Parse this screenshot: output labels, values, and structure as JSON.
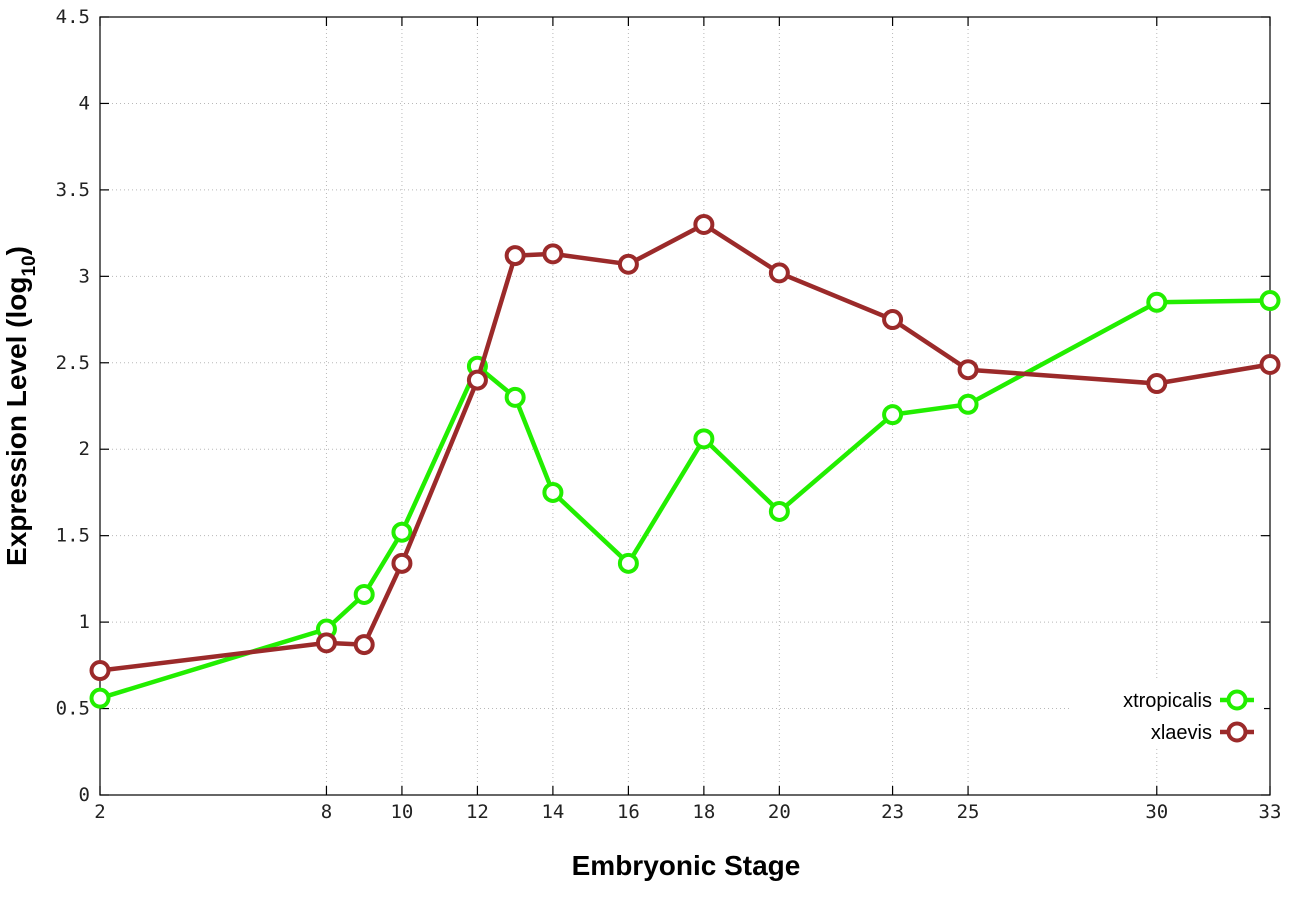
{
  "chart_data": {
    "type": "line",
    "title": "",
    "xlabel": "Embryonic Stage",
    "ylabel_main": "Expression Level (log",
    "ylabel_sub": "10",
    "ylabel_close": ")",
    "x_ticks": [
      "2",
      "8",
      "10",
      "12",
      "14",
      "16",
      "18",
      "20",
      "23",
      "25",
      "30",
      "33"
    ],
    "y_ticks": [
      "0",
      "0.5",
      "1",
      "1.5",
      "2",
      "2.5",
      "3",
      "3.5",
      "4",
      "4.5"
    ],
    "ylim": [
      0,
      4.5
    ],
    "grid": true,
    "legend_position": "bottom-right",
    "series": [
      {
        "name": "xtropicalis",
        "color": "#22ee00",
        "points": [
          {
            "x": 2,
            "y": 0.56
          },
          {
            "x": 8,
            "y": 0.96
          },
          {
            "x": 9,
            "y": 1.16
          },
          {
            "x": 10,
            "y": 1.52
          },
          {
            "x": 12,
            "y": 2.48
          },
          {
            "x": 13,
            "y": 2.3
          },
          {
            "x": 14,
            "y": 1.75
          },
          {
            "x": 16,
            "y": 1.34
          },
          {
            "x": 18,
            "y": 2.06
          },
          {
            "x": 20,
            "y": 1.64
          },
          {
            "x": 23,
            "y": 2.2
          },
          {
            "x": 25,
            "y": 2.26
          },
          {
            "x": 30,
            "y": 2.85
          },
          {
            "x": 33,
            "y": 2.86
          }
        ]
      },
      {
        "name": "xlaevis",
        "color": "#9b2a2a",
        "points": [
          {
            "x": 2,
            "y": 0.72
          },
          {
            "x": 8,
            "y": 0.88
          },
          {
            "x": 9,
            "y": 0.87
          },
          {
            "x": 10,
            "y": 1.34
          },
          {
            "x": 12,
            "y": 2.4
          },
          {
            "x": 13,
            "y": 3.12
          },
          {
            "x": 14,
            "y": 3.13
          },
          {
            "x": 16,
            "y": 3.07
          },
          {
            "x": 18,
            "y": 3.3
          },
          {
            "x": 20,
            "y": 3.02
          },
          {
            "x": 23,
            "y": 2.75
          },
          {
            "x": 25,
            "y": 2.46
          },
          {
            "x": 30,
            "y": 2.38
          },
          {
            "x": 33,
            "y": 2.49
          }
        ]
      }
    ]
  }
}
